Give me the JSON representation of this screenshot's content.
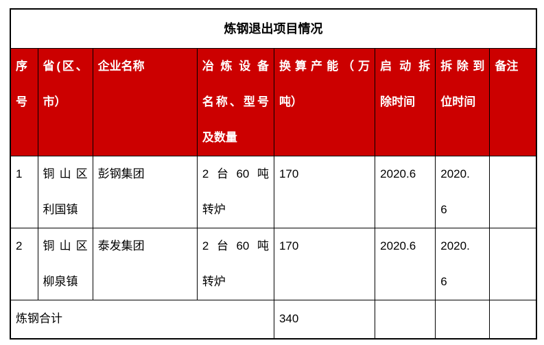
{
  "title": "炼钢退出项目情况",
  "colors": {
    "page_bg": "#ffffff",
    "header_bg": "#cc0000",
    "header_text": "#ffffff",
    "border": "#000000",
    "body_text": "#000000",
    "title_text": "#000000"
  },
  "table": {
    "headers": [
      {
        "label": "序号",
        "lines": [
          "序",
          "号"
        ]
      },
      {
        "label": "省(区、市）",
        "lines": [
          "省(区、",
          "市）"
        ]
      },
      {
        "label": "企业名称",
        "lines": [
          "企业名称"
        ]
      },
      {
        "label": "冶炼设备名称、型号及数量",
        "lines": [
          "冶炼设备",
          "名称、型号",
          "及数量"
        ]
      },
      {
        "label": "换算产能（万吨）",
        "lines": [
          "换算产能（万",
          "吨）"
        ]
      },
      {
        "label": "启动拆除时间",
        "lines": [
          "启动拆",
          "除时间"
        ]
      },
      {
        "label": "拆除到位时间",
        "lines": [
          "拆除到",
          "位时间"
        ]
      },
      {
        "label": "备注",
        "lines": [
          "备注"
        ]
      }
    ],
    "rows": [
      {
        "cells": [
          [
            "1"
          ],
          [
            "铜山区",
            "利国镇"
          ],
          [
            "彭钢集团"
          ],
          [
            "2台60吨",
            "转炉"
          ],
          [
            "170"
          ],
          [
            "2020.6"
          ],
          [
            "2020.",
            "6"
          ],
          []
        ]
      },
      {
        "cells": [
          [
            "2"
          ],
          [
            "铜山区",
            "柳泉镇"
          ],
          [
            "泰发集团"
          ],
          [
            "2台60吨",
            "转炉"
          ],
          [
            "170"
          ],
          [
            "2020.6"
          ],
          [
            "2020.",
            "6"
          ],
          []
        ]
      }
    ],
    "footer": {
      "label": "炼钢合计",
      "capacity_total": "340",
      "start_time": "",
      "finish_time": "",
      "remark": ""
    }
  }
}
